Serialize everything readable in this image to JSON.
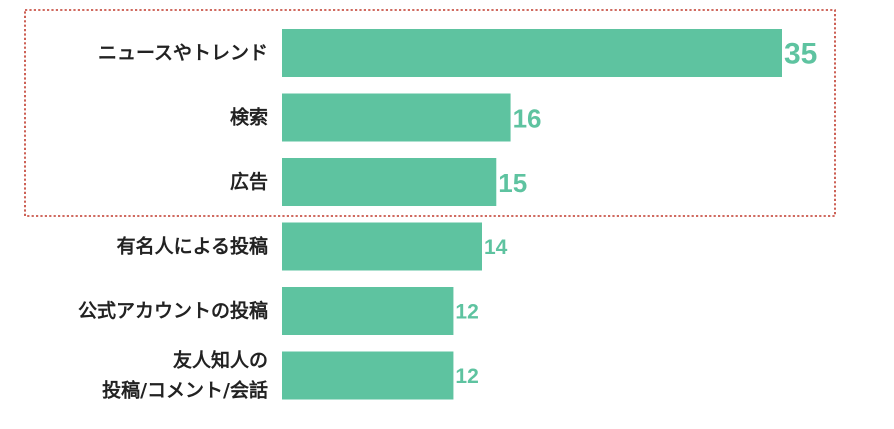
{
  "chart_data": {
    "type": "bar",
    "orientation": "horizontal",
    "categories": [
      [
        "ニュースやトレンド"
      ],
      [
        "検索"
      ],
      [
        "広告"
      ],
      [
        "有名人による投稿"
      ],
      [
        "公式アカウントの投稿"
      ],
      [
        "友人知人の",
        "投稿/コメント/会話"
      ]
    ],
    "values": [
      35,
      16,
      15,
      14,
      12,
      12
    ],
    "highlighted": [
      0,
      1,
      2
    ],
    "bar_color": "#5ec3a0",
    "value_color": "#5ec3a0",
    "highlight_border_color": "#c0392b",
    "xlim": [
      0,
      35
    ],
    "grid": false,
    "title": "",
    "xlabel": "",
    "ylabel": ""
  }
}
